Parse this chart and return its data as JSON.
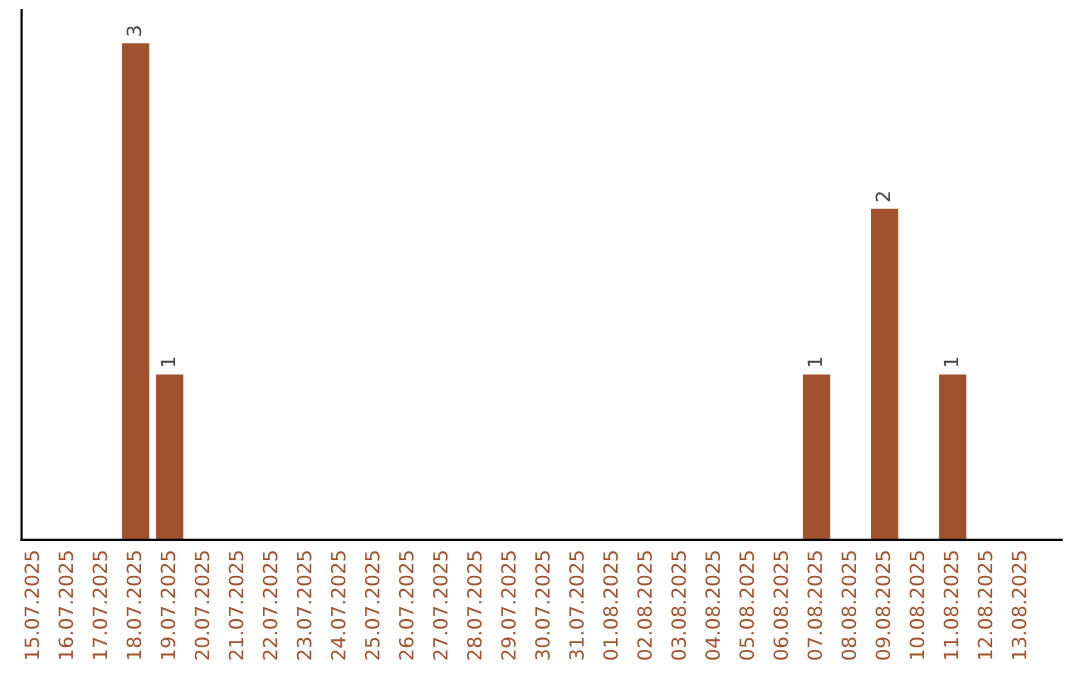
{
  "chart_data": {
    "type": "bar",
    "categories": [
      "15.07.2025",
      "16.07.2025",
      "17.07.2025",
      "18.07.2025",
      "19.07.2025",
      "20.07.2025",
      "21.07.2025",
      "22.07.2025",
      "23.07.2025",
      "24.07.2025",
      "25.07.2025",
      "26.07.2025",
      "27.07.2025",
      "28.07.2025",
      "29.07.2025",
      "30.07.2025",
      "31.07.2025",
      "01.08.2025",
      "02.08.2025",
      "03.08.2025",
      "04.08.2025",
      "05.08.2025",
      "06.08.2025",
      "07.08.2025",
      "08.08.2025",
      "09.08.2025",
      "10.08.2025",
      "11.08.2025",
      "12.08.2025",
      "13.08.2025"
    ],
    "values": [
      0,
      0,
      0,
      3,
      1,
      0,
      0,
      0,
      0,
      0,
      0,
      0,
      0,
      0,
      0,
      0,
      0,
      0,
      0,
      0,
      0,
      0,
      0,
      1,
      0,
      2,
      0,
      1,
      0,
      0
    ],
    "color": "#a0522d",
    "value_labels": [
      null,
      null,
      null,
      "3",
      "1",
      null,
      null,
      null,
      null,
      null,
      null,
      null,
      null,
      null,
      null,
      null,
      null,
      null,
      null,
      null,
      null,
      null,
      null,
      "1",
      null,
      "2",
      null,
      "1",
      null,
      null
    ],
    "ylim": [
      0,
      3.2
    ],
    "tick_labels": "x",
    "grid": false,
    "legend": false
  }
}
